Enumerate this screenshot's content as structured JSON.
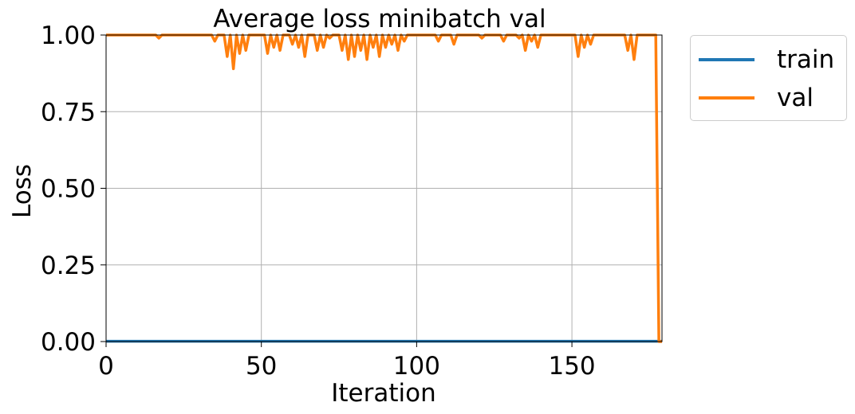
{
  "chart_data": {
    "type": "line",
    "title": "Average loss minibatch val",
    "xlabel": "Iteration",
    "ylabel": "Loss",
    "xlim": [
      0,
      179
    ],
    "ylim": [
      0,
      1
    ],
    "xticks": [
      0,
      50,
      100,
      150
    ],
    "xtick_labels": [
      "0",
      "50",
      "100",
      "150"
    ],
    "yticks": [
      0,
      0.25,
      0.5,
      0.75,
      1.0
    ],
    "ytick_labels": [
      "0.00",
      "0.25",
      "0.50",
      "0.75",
      "1.00"
    ],
    "grid": true,
    "legend_position": "outside-right-top",
    "series": [
      {
        "name": "train",
        "color": "#1f77b4",
        "points": [
          [
            0,
            0.001
          ],
          [
            179,
            0.001
          ]
        ]
      },
      {
        "name": "val",
        "color": "#ff7f0e",
        "points": [
          [
            0,
            1.0
          ],
          [
            16,
            1.0
          ],
          [
            17,
            0.99
          ],
          [
            18,
            1.0
          ],
          [
            34,
            1.0
          ],
          [
            35,
            0.98
          ],
          [
            36,
            1.0
          ],
          [
            38,
            1.0
          ],
          [
            39,
            0.93
          ],
          [
            40,
            1.0
          ],
          [
            41,
            0.89
          ],
          [
            42,
            1.0
          ],
          [
            43,
            0.94
          ],
          [
            44,
            1.0
          ],
          [
            45,
            0.95
          ],
          [
            46,
            1.0
          ],
          [
            51,
            1.0
          ],
          [
            52,
            0.94
          ],
          [
            53,
            1.0
          ],
          [
            54,
            0.96
          ],
          [
            55,
            1.0
          ],
          [
            56,
            0.95
          ],
          [
            57,
            1.0
          ],
          [
            59,
            1.0
          ],
          [
            60,
            0.97
          ],
          [
            61,
            1.0
          ],
          [
            62,
            0.96
          ],
          [
            63,
            1.0
          ],
          [
            64,
            0.93
          ],
          [
            65,
            1.0
          ],
          [
            67,
            1.0
          ],
          [
            68,
            0.95
          ],
          [
            69,
            1.0
          ],
          [
            70,
            0.96
          ],
          [
            71,
            1.0
          ],
          [
            72,
            0.99
          ],
          [
            73,
            1.0
          ],
          [
            75,
            1.0
          ],
          [
            76,
            0.95
          ],
          [
            77,
            1.0
          ],
          [
            78,
            0.92
          ],
          [
            79,
            1.0
          ],
          [
            80,
            0.93
          ],
          [
            81,
            1.0
          ],
          [
            82,
            0.95
          ],
          [
            83,
            1.0
          ],
          [
            84,
            0.92
          ],
          [
            85,
            1.0
          ],
          [
            86,
            0.96
          ],
          [
            87,
            1.0
          ],
          [
            88,
            0.93
          ],
          [
            89,
            1.0
          ],
          [
            90,
            0.96
          ],
          [
            91,
            1.0
          ],
          [
            92,
            0.97
          ],
          [
            93,
            1.0
          ],
          [
            94,
            0.95
          ],
          [
            95,
            1.0
          ],
          [
            96,
            0.98
          ],
          [
            97,
            1.0
          ],
          [
            106,
            1.0
          ],
          [
            107,
            0.98
          ],
          [
            108,
            1.0
          ],
          [
            111,
            1.0
          ],
          [
            112,
            0.97
          ],
          [
            113,
            1.0
          ],
          [
            120,
            1.0
          ],
          [
            121,
            0.99
          ],
          [
            122,
            1.0
          ],
          [
            127,
            1.0
          ],
          [
            128,
            0.98
          ],
          [
            129,
            1.0
          ],
          [
            132,
            1.0
          ],
          [
            133,
            0.99
          ],
          [
            134,
            1.0
          ],
          [
            135,
            0.95
          ],
          [
            136,
            1.0
          ],
          [
            137,
            0.98
          ],
          [
            138,
            1.0
          ],
          [
            139,
            0.96
          ],
          [
            140,
            1.0
          ],
          [
            151,
            1.0
          ],
          [
            152,
            0.93
          ],
          [
            153,
            1.0
          ],
          [
            154,
            0.96
          ],
          [
            155,
            1.0
          ],
          [
            156,
            0.97
          ],
          [
            157,
            1.0
          ],
          [
            167,
            1.0
          ],
          [
            168,
            0.95
          ],
          [
            169,
            1.0
          ],
          [
            170,
            0.92
          ],
          [
            171,
            1.0
          ],
          [
            177,
            1.0
          ],
          [
            178,
            0.0
          ],
          [
            179,
            0.0
          ]
        ]
      }
    ]
  }
}
